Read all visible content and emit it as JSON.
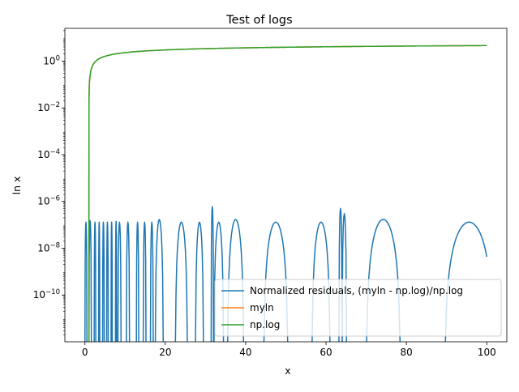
{
  "chart_data": {
    "type": "line",
    "title": "Test of logs",
    "xlabel": "x",
    "ylabel": "ln x",
    "xlim": [
      -4.99,
      104.99
    ],
    "ylim_log10": [
      -12.0,
      1.4
    ],
    "y_scale": "log",
    "grid": false,
    "legend_placement": "lower-right",
    "x_ticks": [
      {
        "value": 0,
        "label": "0"
      },
      {
        "value": 20,
        "label": "20"
      },
      {
        "value": 40,
        "label": "40"
      },
      {
        "value": 60,
        "label": "60"
      },
      {
        "value": 80,
        "label": "80"
      },
      {
        "value": 100,
        "label": "100"
      }
    ],
    "y_ticks": [
      {
        "exp": 0,
        "base": "10",
        "sup": "0"
      },
      {
        "exp": -2,
        "base": "10",
        "sup": "−2"
      },
      {
        "exp": -4,
        "base": "10",
        "sup": "−4"
      },
      {
        "exp": -6,
        "base": "10",
        "sup": "−6"
      },
      {
        "exp": -8,
        "base": "10",
        "sup": "−8"
      },
      {
        "exp": -10,
        "base": "10",
        "sup": "−10"
      }
    ],
    "series": [
      {
        "name": "Normalized residuals, (myln - np.log)/np.log",
        "color": "#1f77b4",
        "curve": "residual_arches",
        "note_points": [
          [
            32.0,
            6e-07
          ],
          [
            64.0,
            5e-07
          ],
          [
            73.9,
            1.7e-07
          ],
          [
            95.5,
            1.3e-07
          ],
          [
            100.0,
            4.5e-08
          ]
        ]
      },
      {
        "name": "myln",
        "color": "#ff7f0e",
        "curve": "natural_log",
        "hidden_behind_next": true
      },
      {
        "name": "np.log",
        "color": "#2ca02c",
        "curve": "natural_log",
        "points": [
          [
            1.2,
            0.18
          ],
          [
            2,
            0.69
          ],
          [
            5,
            1.61
          ],
          [
            10,
            2.3
          ],
          [
            20,
            3.0
          ],
          [
            40,
            3.69
          ],
          [
            60,
            4.09
          ],
          [
            80,
            4.38
          ],
          [
            100,
            4.61
          ]
        ]
      }
    ]
  }
}
